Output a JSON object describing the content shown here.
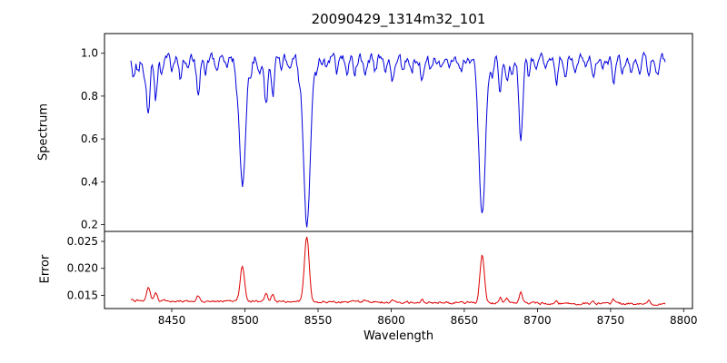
{
  "figure": {
    "title": "20090429_1314m32_101",
    "xlabel": "Wavelength",
    "ylabel_top": "Spectrum",
    "ylabel_bottom": "Error"
  },
  "chart_data": [
    {
      "type": "line",
      "name": "spectrum",
      "title": "20090429_1314m32_101",
      "ylabel": "Spectrum",
      "color": "#0000dd",
      "xlim": [
        8404,
        8806
      ],
      "ylim": [
        0.168,
        1.092
      ],
      "x_range": [
        8422,
        8788
      ],
      "sample_step": 0.7,
      "xticks": [
        8450,
        8500,
        8550,
        8600,
        8650,
        8700,
        8750,
        8800
      ],
      "xtick_labels": [
        "8450",
        "8500",
        "8550",
        "8600",
        "8650",
        "8700",
        "8750",
        "8800"
      ],
      "yticks": [
        0.2,
        0.4,
        0.6,
        0.8,
        1.0
      ],
      "ytick_labels": [
        "0.2",
        "0.4",
        "0.6",
        "0.8",
        "1.0"
      ],
      "continuum": 0.975,
      "noise_amplitude": 0.02,
      "noise_smooth": 0.5,
      "absorption_lines": [
        [
          8424,
          0.08,
          0.9
        ],
        [
          8427,
          0.05,
          0.8
        ],
        [
          8431,
          0.1,
          0.9
        ],
        [
          8434,
          0.25,
          1.1
        ],
        [
          8439,
          0.2,
          1.0
        ],
        [
          8443,
          0.08,
          0.9
        ],
        [
          8450,
          0.05,
          0.9
        ],
        [
          8456,
          0.08,
          0.9
        ],
        [
          8461,
          0.06,
          0.9
        ],
        [
          8468,
          0.17,
          1.1
        ],
        [
          8473,
          0.06,
          0.9
        ],
        [
          8481,
          0.07,
          0.9
        ],
        [
          8488,
          0.05,
          0.9
        ],
        [
          8494,
          0.06,
          0.9
        ],
        [
          8498.3,
          0.6,
          2.1
        ],
        [
          8504,
          0.07,
          0.9
        ],
        [
          8510,
          0.06,
          0.9
        ],
        [
          8514.5,
          0.21,
          1.1
        ],
        [
          8519,
          0.18,
          1.1
        ],
        [
          8525,
          0.06,
          0.9
        ],
        [
          8531,
          0.05,
          0.9
        ],
        [
          8537,
          0.07,
          0.9
        ],
        [
          8542.3,
          0.79,
          2.3
        ],
        [
          8549,
          0.06,
          0.9
        ],
        [
          8556,
          0.05,
          0.9
        ],
        [
          8563,
          0.07,
          0.9
        ],
        [
          8570,
          0.05,
          0.9
        ],
        [
          8575,
          0.06,
          0.9
        ],
        [
          8582,
          0.08,
          1.0
        ],
        [
          8589,
          0.05,
          0.9
        ],
        [
          8596,
          0.07,
          0.9
        ],
        [
          8601,
          0.1,
          1.0
        ],
        [
          8608,
          0.06,
          0.9
        ],
        [
          8614,
          0.07,
          0.9
        ],
        [
          8621,
          0.1,
          1.0
        ],
        [
          8627,
          0.05,
          0.9
        ],
        [
          8634,
          0.06,
          0.9
        ],
        [
          8640,
          0.05,
          0.9
        ],
        [
          8648,
          0.06,
          0.9
        ],
        [
          8654,
          0.05,
          0.9
        ],
        [
          8662.2,
          0.74,
          2.2
        ],
        [
          8669,
          0.07,
          0.9
        ],
        [
          8674.5,
          0.16,
          1.0
        ],
        [
          8679,
          0.12,
          1.0
        ],
        [
          8683,
          0.08,
          0.9
        ],
        [
          8688.7,
          0.37,
          1.3
        ],
        [
          8694,
          0.08,
          0.9
        ],
        [
          8699,
          0.06,
          0.9
        ],
        [
          8706,
          0.05,
          0.9
        ],
        [
          8713,
          0.12,
          1.0
        ],
        [
          8719,
          0.06,
          0.9
        ],
        [
          8726,
          0.07,
          0.9
        ],
        [
          8733,
          0.06,
          0.9
        ],
        [
          8738,
          0.09,
          1.0
        ],
        [
          8745,
          0.05,
          0.9
        ],
        [
          8752,
          0.11,
          1.0
        ],
        [
          8758,
          0.06,
          0.9
        ],
        [
          8764,
          0.08,
          0.9
        ],
        [
          8770,
          0.07,
          0.9
        ],
        [
          8776,
          0.1,
          1.0
        ],
        [
          8782,
          0.06,
          0.9
        ]
      ]
    },
    {
      "type": "line",
      "name": "error",
      "ylabel": "Error",
      "color": "#dd0000",
      "xlim": [
        8404,
        8806
      ],
      "ylim": [
        0.01255,
        0.02685
      ],
      "x_range": [
        8422,
        8788
      ],
      "sample_step": 0.7,
      "yticks": [
        0.015,
        0.02,
        0.025
      ],
      "ytick_labels": [
        "0.015",
        "0.020",
        "0.025"
      ],
      "baseline_start": 0.014,
      "baseline_end": 0.0134,
      "noise_amplitude": 0.00018,
      "noise_smooth": 0.5,
      "emission_peaks": [
        [
          8434,
          0.0026,
          1.2
        ],
        [
          8439,
          0.0018,
          1.0
        ],
        [
          8468,
          0.0009,
          1.0
        ],
        [
          8498.3,
          0.0066,
          1.5
        ],
        [
          8514.5,
          0.0016,
          1.0
        ],
        [
          8519,
          0.0013,
          1.0
        ],
        [
          8542.3,
          0.0122,
          1.6
        ],
        [
          8582,
          0.0005,
          0.9
        ],
        [
          8601,
          0.0006,
          0.9
        ],
        [
          8621,
          0.0005,
          0.9
        ],
        [
          8662.2,
          0.009,
          1.5
        ],
        [
          8674.5,
          0.001,
          0.9
        ],
        [
          8679,
          0.0008,
          0.9
        ],
        [
          8688.7,
          0.002,
          1.1
        ],
        [
          8713,
          0.0007,
          0.9
        ],
        [
          8738,
          0.0005,
          0.9
        ],
        [
          8752,
          0.0007,
          0.9
        ],
        [
          8776,
          0.0006,
          0.9
        ]
      ]
    }
  ]
}
